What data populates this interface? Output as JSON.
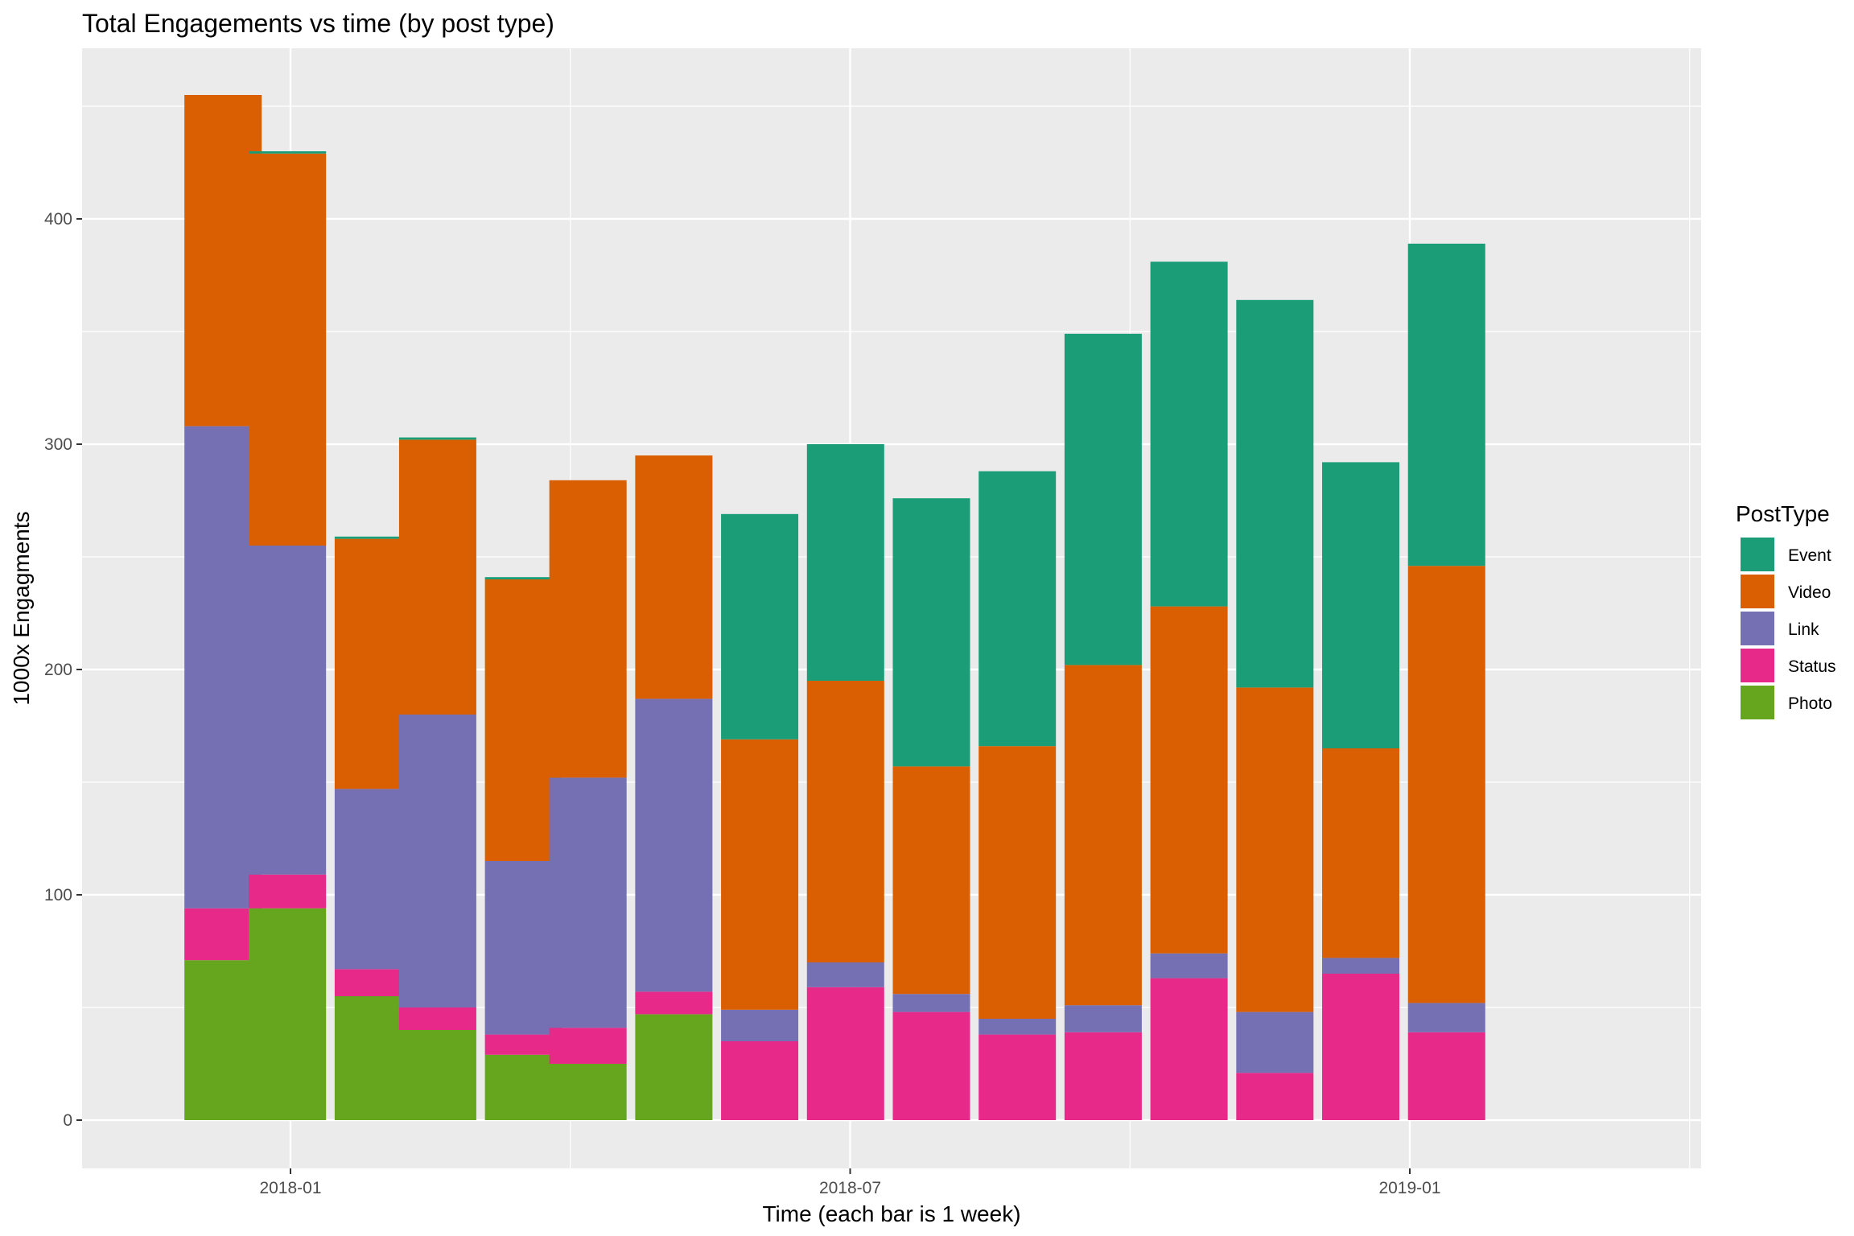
{
  "chart_data": {
    "type": "bar",
    "stacked": true,
    "title": "Total Engagements vs time (by post type)",
    "xlabel": "Time (each bar is 1 week)",
    "ylabel": "1000x Engagments",
    "ylim": [
      0,
      475
    ],
    "yticks": [
      0,
      100,
      200,
      300,
      400
    ],
    "xticks": [
      "2018-01",
      "2018-07",
      "2019-01"
    ],
    "grid": true,
    "legend": {
      "title": "PostType",
      "position": "right"
    },
    "colors": {
      "Event": "#1b9e77",
      "Video": "#d95f02",
      "Link": "#7570b3",
      "Status": "#e7298a",
      "Photo": "#66a61e"
    },
    "categories": [
      "2017-12-10",
      "2017-12-31",
      "2018-01-28",
      "2018-02-18",
      "2018-03-18",
      "2018-04-08",
      "2018-05-06",
      "2018-06-03",
      "2018-07-01",
      "2018-07-29",
      "2018-08-26",
      "2018-09-23",
      "2018-10-21",
      "2018-11-18",
      "2018-12-16",
      "2019-01-13"
    ],
    "series": [
      {
        "name": "Photo",
        "values": [
          71,
          94,
          55,
          40,
          29,
          25,
          47,
          0,
          0,
          0,
          0,
          0,
          0,
          0,
          0,
          0
        ]
      },
      {
        "name": "Status",
        "values": [
          23,
          15,
          12,
          10,
          9,
          16,
          10,
          35,
          59,
          48,
          38,
          39,
          63,
          21,
          65,
          39
        ]
      },
      {
        "name": "Link",
        "values": [
          214,
          146,
          80,
          130,
          77,
          111,
          130,
          14,
          11,
          8,
          7,
          12,
          11,
          27,
          7,
          13
        ]
      },
      {
        "name": "Video",
        "values": [
          147,
          174,
          111,
          122,
          125,
          132,
          108,
          120,
          125,
          101,
          121,
          151,
          154,
          144,
          93,
          194
        ]
      },
      {
        "name": "Event",
        "values": [
          0,
          1,
          1,
          1,
          1,
          0,
          0,
          100,
          105,
          119,
          122,
          147,
          153,
          172,
          127,
          143
        ]
      }
    ]
  }
}
